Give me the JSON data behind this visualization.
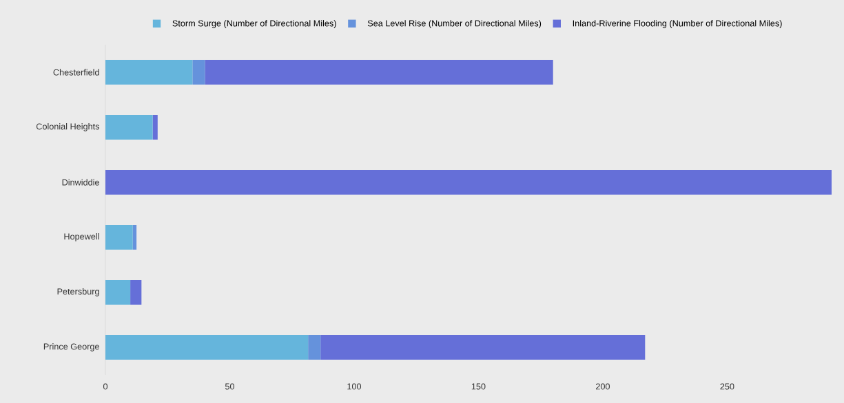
{
  "chart_data": {
    "type": "bar",
    "orientation": "horizontal",
    "stacked": true,
    "categories": [
      "Chesterfield",
      "Colonial Heights",
      "Dinwiddie",
      "Hopewell",
      "Petersburg",
      "Prince George"
    ],
    "series": [
      {
        "name": "Storm Surge (Number of Directional Miles)",
        "color": "#65b5dc",
        "values": [
          35,
          19,
          0,
          11,
          10,
          81.5
        ]
      },
      {
        "name": "Sea Level Rise (Number of Directional Miles)",
        "color": "#6592dc",
        "values": [
          5,
          0,
          0,
          1.5,
          0,
          5
        ]
      },
      {
        "name": "Inland-Riverine Flooding (Number of Directional Miles)",
        "color": "#656fd8",
        "values": [
          140,
          2,
          292,
          0,
          4.5,
          130.5
        ]
      }
    ],
    "xlim": [
      0,
      292
    ],
    "xticks": [
      0,
      50,
      100,
      150,
      200,
      250
    ],
    "grid": false,
    "legend": "top"
  }
}
